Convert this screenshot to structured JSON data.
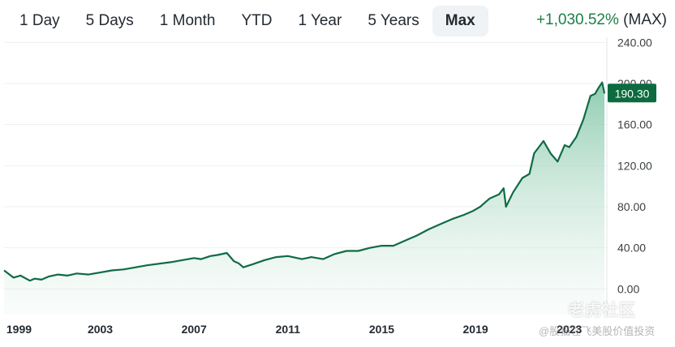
{
  "tabs": [
    {
      "label": "1 Day",
      "active": false
    },
    {
      "label": "5 Days",
      "active": false
    },
    {
      "label": "1 Month",
      "active": false
    },
    {
      "label": "YTD",
      "active": false
    },
    {
      "label": "1 Year",
      "active": false
    },
    {
      "label": "5 Years",
      "active": false
    },
    {
      "label": "Max",
      "active": true
    }
  ],
  "change": {
    "percent": "+1,030.52%",
    "range": "(MAX)"
  },
  "colors": {
    "line": "#0f6b45",
    "area_top": "#7cc3a4",
    "accent_green": "#1b7f48",
    "price_tag": "#0b6b3f"
  },
  "watermark": {
    "logo": "老虎社区",
    "credit": "@股猫在飞美股价值投资"
  },
  "chart_data": {
    "type": "area",
    "title": "",
    "xlabel": "",
    "ylabel": "",
    "x_ticks": [
      "1999",
      "2003",
      "2007",
      "2011",
      "2015",
      "2019",
      "2023"
    ],
    "y_ticks": [
      "0.00",
      "40.00",
      "80.00",
      "120.00",
      "160.00",
      "200.00",
      "240.00"
    ],
    "xlim": [
      1998.9,
      2024.6
    ],
    "ylim": [
      -25,
      245
    ],
    "last_price_label": "190.30",
    "last_price": 190.3,
    "grid": true,
    "legend": "none",
    "series": [
      {
        "x": [
          1998.9,
          1999.3,
          1999.6,
          2000.0,
          2000.2,
          2000.5,
          2000.8,
          2001.2,
          2001.6,
          2002.0,
          2002.5,
          2003.0,
          2003.5,
          2004.0,
          2005.0,
          2006.0,
          2007.0,
          2007.3,
          2007.7,
          2008.0,
          2008.4,
          2008.7,
          2008.9,
          2009.1,
          2009.5,
          2010.0,
          2010.5,
          2011.0,
          2011.6,
          2012.0,
          2012.5,
          2013.0,
          2013.5,
          2014.0,
          2014.5,
          2015.0,
          2015.5,
          2016.0,
          2016.5,
          2017.0,
          2017.5,
          2018.0,
          2018.5,
          2018.9,
          2019.2,
          2019.6,
          2020.0,
          2020.2,
          2020.3,
          2020.6,
          2021.0,
          2021.3,
          2021.5,
          2021.7,
          2021.9,
          2022.2,
          2022.5,
          2022.8,
          2023.0,
          2023.3,
          2023.6,
          2023.9,
          2024.1,
          2024.25,
          2024.4,
          2024.5
        ],
        "y": [
          18,
          11,
          13,
          8,
          10,
          9,
          12,
          14,
          13,
          15,
          14,
          16,
          18,
          19,
          23,
          26,
          30,
          29,
          32,
          33,
          35,
          27,
          25,
          21,
          24,
          28,
          31,
          32,
          29,
          31,
          29,
          34,
          37,
          37,
          40,
          42,
          42,
          47,
          52,
          58,
          63,
          68,
          72,
          76,
          80,
          88,
          92,
          98,
          80,
          94,
          108,
          112,
          132,
          138,
          144,
          132,
          124,
          140,
          138,
          148,
          165,
          188,
          190,
          196,
          201,
          190.3
        ]
      }
    ]
  }
}
